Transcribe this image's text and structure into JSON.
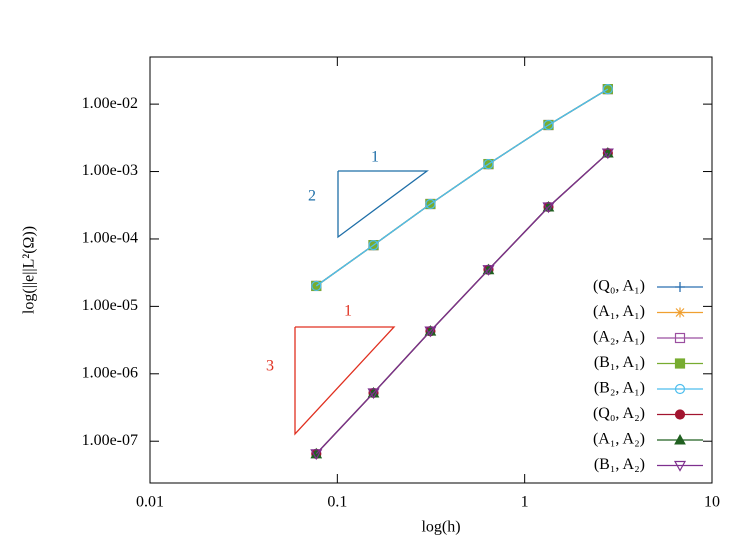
{
  "chart_data": {
    "type": "line",
    "x_label": "log(h)",
    "y_label": "log(||e||L²(Ω))",
    "log_x": true,
    "log_y": true,
    "legend": "lower right",
    "x": [
      0.0772,
      0.156,
      0.314,
      0.641,
      1.34,
      2.78
    ],
    "xlim": [
      0.01,
      10
    ],
    "xticks": [
      0.01,
      0.1,
      1,
      10
    ],
    "ylim": [
      2.4e-08,
      0.05
    ],
    "yticks": [
      {
        "value": 1e-07,
        "label": "1.00e-07"
      },
      {
        "value": 1e-06,
        "label": "1.00e-06"
      },
      {
        "value": 1e-05,
        "label": "1.00e-05"
      },
      {
        "value": 0.0001,
        "label": "1.00e-04"
      },
      {
        "value": 0.001,
        "label": "1.00e-03"
      },
      {
        "value": 0.01,
        "label": "1.00e-02"
      }
    ],
    "series": [
      {
        "name": "(Q₀, A₁)",
        "color": "#2b6fb0",
        "marker": "plus",
        "values": [
          2.01e-05,
          8.1e-05,
          0.00033,
          0.00129,
          0.0049,
          0.0167
        ]
      },
      {
        "name": "(A₁, A₁)",
        "color": "#f0a030",
        "marker": "star",
        "values": [
          2.01e-05,
          8.1e-05,
          0.00033,
          0.00129,
          0.0049,
          0.0167
        ]
      },
      {
        "name": "(A₂, A₁)",
        "color": "#9b4fa0",
        "marker": "square-open",
        "values": [
          2.01e-05,
          8.1e-05,
          0.00033,
          0.00129,
          0.0049,
          0.0167
        ]
      },
      {
        "name": "(B₁, A₁)",
        "color": "#77ac30",
        "marker": "square",
        "values": [
          2.01e-05,
          8.1e-05,
          0.00033,
          0.00129,
          0.0049,
          0.0167
        ]
      },
      {
        "name": "(B₂, A₁)",
        "color": "#4dbeee",
        "marker": "circle-open",
        "values": [
          2.01e-05,
          8.1e-05,
          0.00033,
          0.00129,
          0.0049,
          0.0167
        ]
      },
      {
        "name": "(Q₀, A₂)",
        "color": "#a2142f",
        "marker": "circle",
        "values": [
          6.5e-08,
          5.2e-07,
          4.3e-06,
          3.5e-05,
          0.000298,
          0.00188
        ]
      },
      {
        "name": "(A₁, A₂)",
        "color": "#206020",
        "marker": "triangle",
        "values": [
          6.5e-08,
          5.2e-07,
          4.3e-06,
          3.5e-05,
          0.000298,
          0.00188
        ]
      },
      {
        "name": "(B₁, A₂)",
        "color": "#7e2f8e",
        "marker": "triangle-down",
        "values": [
          6.5e-08,
          5.2e-07,
          4.3e-06,
          3.5e-05,
          0.000298,
          0.00188
        ]
      }
    ],
    "annotations": [
      "1",
      "2",
      "1",
      "3"
    ]
  }
}
